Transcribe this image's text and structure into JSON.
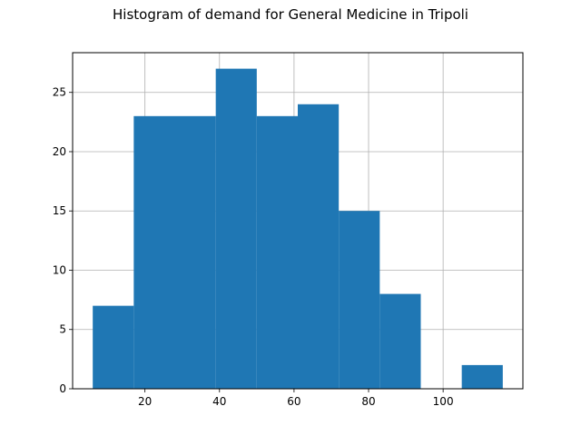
{
  "chart_data": {
    "type": "bar",
    "title": "Histogram of demand for General Medicine in Tripoli",
    "xlabel": "",
    "ylabel": "",
    "bins": [
      {
        "start": 6,
        "end": 17,
        "count": 7
      },
      {
        "start": 17,
        "end": 28,
        "count": 23
      },
      {
        "start": 28,
        "end": 39,
        "count": 23
      },
      {
        "start": 39,
        "end": 50,
        "count": 27
      },
      {
        "start": 50,
        "end": 61,
        "count": 23
      },
      {
        "start": 61,
        "end": 72,
        "count": 24
      },
      {
        "start": 72,
        "end": 83,
        "count": 15
      },
      {
        "start": 83,
        "end": 94,
        "count": 8
      },
      {
        "start": 94,
        "end": 105,
        "count": 0
      },
      {
        "start": 105,
        "end": 116,
        "count": 2
      }
    ],
    "xlim": [
      0.6,
      121.4
    ],
    "ylim": [
      0,
      28.35
    ],
    "xticks": [
      "20",
      "40",
      "60",
      "80",
      "100"
    ],
    "yticks": [
      "0",
      "5",
      "10",
      "15",
      "20",
      "25"
    ],
    "grid": true,
    "bar_color": "#1f77b4",
    "grid_color": "#b0b0b0"
  }
}
